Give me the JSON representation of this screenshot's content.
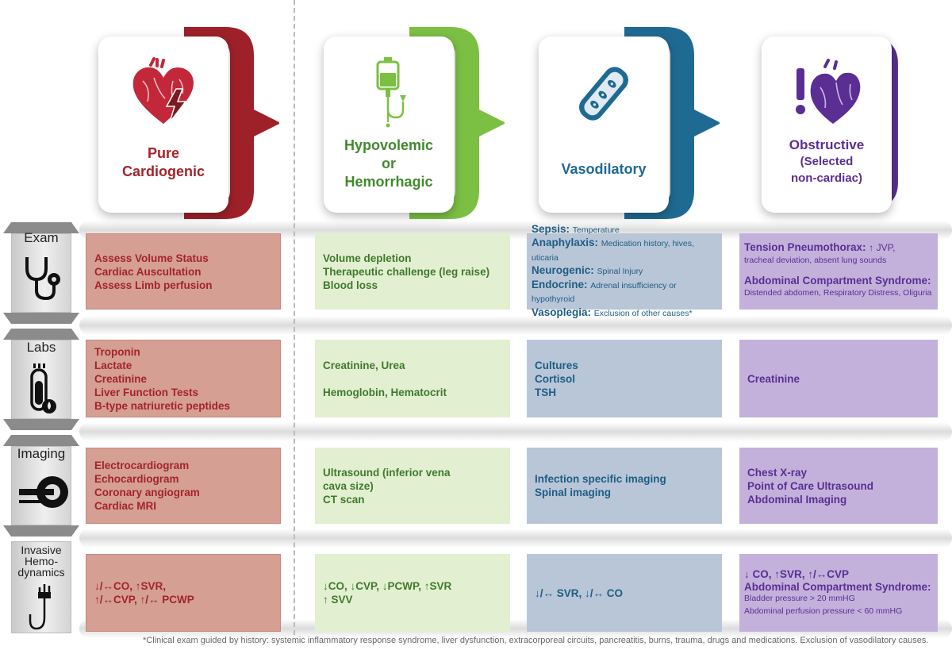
{
  "colors": {
    "cardiogenic": "#a3242b",
    "hypovolemic": "#7bc043",
    "vasodilatory": "#1f6a93",
    "obstructive": "#5b2e93"
  },
  "headers": [
    {
      "icon": "heart-lightning-icon",
      "title_lines": [
        "Pure",
        "Cardiogenic"
      ]
    },
    {
      "icon": "iv-bag-icon",
      "title_lines": [
        "Hypovolemic",
        "or",
        "Hemorrhagic"
      ]
    },
    {
      "icon": "blood-vessel-icon",
      "title_lines": [
        "Vasodilatory"
      ]
    },
    {
      "icon": "heart-alert-icon",
      "title_lines": [
        "Obstructive",
        "(Selected",
        "non-cardiac)"
      ]
    }
  ],
  "rows": {
    "exam": {
      "label": "Exam",
      "icon": "stethoscope-icon",
      "cardiogenic": [
        "Assess Volume Status",
        "Cardiac Auscultation",
        "Assess Limb perfusion"
      ],
      "hypovolemic": [
        "Volume depletion",
        "Therapeutic challenge (leg raise)",
        "Blood loss"
      ],
      "vasodilatory": [
        {
          "term": "Sepsis:",
          "desc": "Temperature"
        },
        {
          "term": "Anaphylaxis:",
          "desc": "Medication history, hives, uticaria"
        },
        {
          "term": "Neurogenic:",
          "desc": "Spinal Injury"
        },
        {
          "term": "Endocrine:",
          "desc": "Adrenal insufficiency or hypothyroid"
        },
        {
          "term": "Vasoplegia:",
          "desc": "Exclusion of other causes*"
        }
      ],
      "obstructive": {
        "t1": "Tension Pneumothorax:",
        "t1_tail": "↑ JVP,",
        "d1": "tracheal deviation, absent lung sounds",
        "t2": "Abdominal Compartment Syndrome:",
        "d2": "Distended abdomen, Respiratory Distress, Oliguria"
      }
    },
    "labs": {
      "label": "Labs",
      "icon": "test-tube-icon",
      "cardiogenic": [
        "Troponin",
        "Lactate",
        "Creatinine",
        "Liver Function Tests",
        "B-type natriuretic peptides"
      ],
      "hypovolemic": [
        "Creatinine, Urea",
        "Hemoglobin, Hematocrit"
      ],
      "vasodilatory": [
        "Cultures",
        "Cortisol",
        "TSH"
      ],
      "obstructive": [
        "Creatinine"
      ]
    },
    "imaging": {
      "label": "Imaging",
      "icon": "ct-scanner-icon",
      "cardiogenic": [
        "Electrocardiogram",
        "Echocardiogram",
        "Coronary angiogram",
        "Cardiac MRI"
      ],
      "hypovolemic": [
        "Ultrasound (inferior vena",
        "cava size)",
        "CT scan"
      ],
      "vasodilatory": [
        "Infection specific imaging",
        "Spinal imaging"
      ],
      "obstructive": [
        "Chest X-ray",
        "Point of Care Ultrasound",
        "Abdominal Imaging"
      ]
    },
    "invasive": {
      "label_lines": [
        "Invasive",
        "Hemo-",
        "dynamics"
      ],
      "icon": "catheter-icon",
      "cardiogenic": [
        "↓/↔CO, ↑SVR,",
        "↑/↔CVP, ↑/↔ PCWP"
      ],
      "hypovolemic": [
        "↓CO, ↓CVP, ↓PCWP, ↑SVR",
        "↑ SVV"
      ],
      "vasodilatory": [
        "↓/↔ SVR, ↓/↔ CO"
      ],
      "obstructive": {
        "l1": "↓ CO, ↑SVR, ↑/↔CVP",
        "l2": "Abdominal Compartment Syndrome:",
        "d1": "Bladder pressure > 20 mmHG",
        "d2": "Abdominal perfusion pressure < 60 mmHG"
      }
    }
  },
  "footnote": "*Clinical exam guided by history: systemic inflammatory response syndrome, liver dysfunction, extracorporeal circuits, pancreatitis, burns, trauma, drugs and medications. Exclusion of vasodilatory causes."
}
